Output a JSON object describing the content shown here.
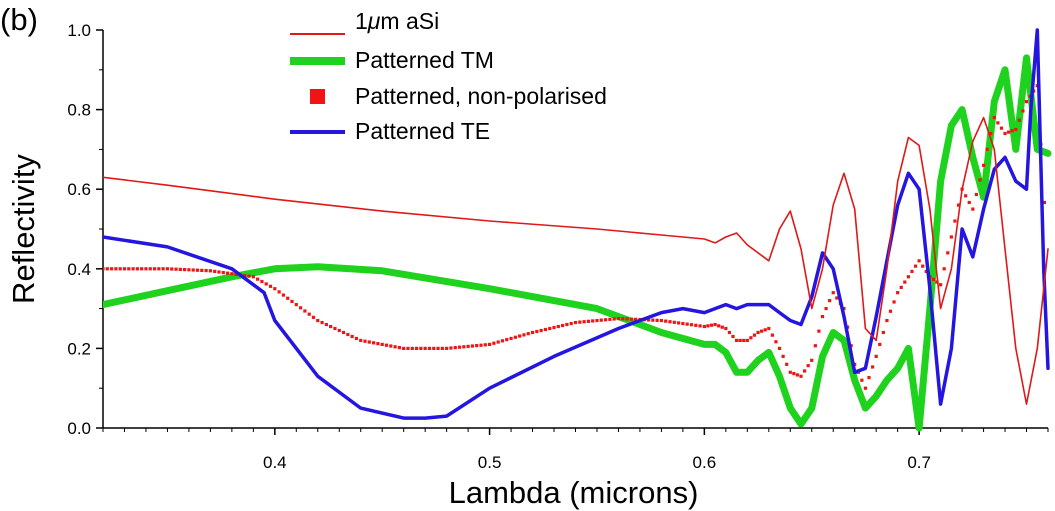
{
  "panel_label": "(b)",
  "chart_data": {
    "type": "line",
    "title": "",
    "xlabel": "Lambda (microns)",
    "ylabel": "Reflectivity",
    "xlim": [
      0.32,
      0.76
    ],
    "ylim": [
      0.0,
      1.0
    ],
    "xticks": [
      0.4,
      0.5,
      0.6,
      0.7
    ],
    "xtick_labels": [
      "0.4",
      "0.5",
      "0.6",
      "0.7"
    ],
    "yticks": [
      0.0,
      0.2,
      0.4,
      0.6,
      0.8,
      1.0
    ],
    "ytick_labels": [
      "0.0",
      "0.2",
      "0.4",
      "0.6",
      "0.8",
      "1.0"
    ],
    "grid": false,
    "legend_position": "top-center",
    "series": [
      {
        "name": "1μm aSi",
        "legend_prefix": "1",
        "legend_italic": "μ",
        "legend_suffix": "m aSi",
        "style": "line-thin",
        "color": "#e01818",
        "x": [
          0.32,
          0.35,
          0.4,
          0.45,
          0.5,
          0.55,
          0.58,
          0.59,
          0.6,
          0.605,
          0.61,
          0.615,
          0.62,
          0.63,
          0.635,
          0.64,
          0.645,
          0.65,
          0.655,
          0.66,
          0.665,
          0.67,
          0.675,
          0.68,
          0.685,
          0.69,
          0.695,
          0.7,
          0.705,
          0.71,
          0.715,
          0.72,
          0.725,
          0.73,
          0.735,
          0.74,
          0.745,
          0.75,
          0.755,
          0.76
        ],
        "y": [
          0.63,
          0.61,
          0.575,
          0.545,
          0.52,
          0.5,
          0.485,
          0.48,
          0.475,
          0.465,
          0.48,
          0.49,
          0.46,
          0.42,
          0.5,
          0.545,
          0.45,
          0.3,
          0.4,
          0.56,
          0.64,
          0.55,
          0.25,
          0.22,
          0.4,
          0.62,
          0.73,
          0.71,
          0.55,
          0.3,
          0.4,
          0.6,
          0.72,
          0.78,
          0.7,
          0.45,
          0.2,
          0.06,
          0.2,
          0.45
        ]
      },
      {
        "name": "Patterned TM",
        "style": "line-thick",
        "color": "#1ed21e",
        "x": [
          0.32,
          0.35,
          0.38,
          0.4,
          0.42,
          0.45,
          0.5,
          0.55,
          0.58,
          0.6,
          0.605,
          0.61,
          0.615,
          0.62,
          0.625,
          0.63,
          0.635,
          0.64,
          0.645,
          0.65,
          0.655,
          0.66,
          0.665,
          0.67,
          0.675,
          0.68,
          0.685,
          0.69,
          0.695,
          0.7,
          0.705,
          0.71,
          0.715,
          0.72,
          0.725,
          0.73,
          0.735,
          0.74,
          0.745,
          0.75,
          0.755,
          0.76
        ],
        "y": [
          0.31,
          0.345,
          0.38,
          0.4,
          0.405,
          0.395,
          0.35,
          0.3,
          0.24,
          0.21,
          0.21,
          0.19,
          0.14,
          0.14,
          0.17,
          0.19,
          0.13,
          0.05,
          0.01,
          0.05,
          0.18,
          0.24,
          0.22,
          0.12,
          0.05,
          0.08,
          0.12,
          0.15,
          0.2,
          0.0,
          0.3,
          0.62,
          0.76,
          0.8,
          0.68,
          0.58,
          0.82,
          0.9,
          0.7,
          0.93,
          0.7,
          0.69
        ]
      },
      {
        "name": "Patterned, non-polarised",
        "style": "markers",
        "color": "#f01414",
        "x": [
          0.32,
          0.35,
          0.37,
          0.39,
          0.4,
          0.42,
          0.44,
          0.46,
          0.48,
          0.5,
          0.52,
          0.54,
          0.56,
          0.58,
          0.6,
          0.605,
          0.61,
          0.615,
          0.62,
          0.625,
          0.63,
          0.635,
          0.64,
          0.645,
          0.65,
          0.655,
          0.66,
          0.665,
          0.67,
          0.675,
          0.68,
          0.685,
          0.69,
          0.695,
          0.7,
          0.705,
          0.71,
          0.715,
          0.72,
          0.725,
          0.73,
          0.735,
          0.74,
          0.745,
          0.75,
          0.755,
          0.76
        ],
        "y": [
          0.4,
          0.4,
          0.395,
          0.38,
          0.35,
          0.27,
          0.22,
          0.2,
          0.2,
          0.21,
          0.24,
          0.265,
          0.275,
          0.27,
          0.255,
          0.26,
          0.25,
          0.22,
          0.22,
          0.24,
          0.25,
          0.2,
          0.14,
          0.13,
          0.17,
          0.28,
          0.34,
          0.3,
          0.16,
          0.1,
          0.18,
          0.27,
          0.34,
          0.38,
          0.42,
          0.38,
          0.36,
          0.48,
          0.6,
          0.55,
          0.66,
          0.78,
          0.74,
          0.75,
          0.82,
          0.86,
          0.42
        ]
      },
      {
        "name": "Patterned TE",
        "style": "line-medium",
        "color": "#2416e0",
        "x": [
          0.32,
          0.35,
          0.38,
          0.395,
          0.4,
          0.42,
          0.44,
          0.46,
          0.47,
          0.48,
          0.5,
          0.53,
          0.56,
          0.58,
          0.59,
          0.6,
          0.61,
          0.615,
          0.62,
          0.63,
          0.635,
          0.64,
          0.645,
          0.65,
          0.655,
          0.66,
          0.665,
          0.67,
          0.675,
          0.68,
          0.685,
          0.69,
          0.695,
          0.7,
          0.705,
          0.71,
          0.715,
          0.72,
          0.725,
          0.73,
          0.735,
          0.74,
          0.745,
          0.75,
          0.752,
          0.755,
          0.758,
          0.76
        ],
        "y": [
          0.48,
          0.455,
          0.4,
          0.34,
          0.27,
          0.13,
          0.05,
          0.025,
          0.025,
          0.03,
          0.1,
          0.18,
          0.25,
          0.29,
          0.3,
          0.29,
          0.31,
          0.3,
          0.31,
          0.31,
          0.29,
          0.27,
          0.26,
          0.33,
          0.44,
          0.4,
          0.28,
          0.14,
          0.15,
          0.28,
          0.42,
          0.56,
          0.64,
          0.6,
          0.35,
          0.06,
          0.2,
          0.5,
          0.43,
          0.55,
          0.65,
          0.68,
          0.62,
          0.6,
          0.8,
          1.0,
          0.4,
          0.15
        ]
      }
    ]
  }
}
